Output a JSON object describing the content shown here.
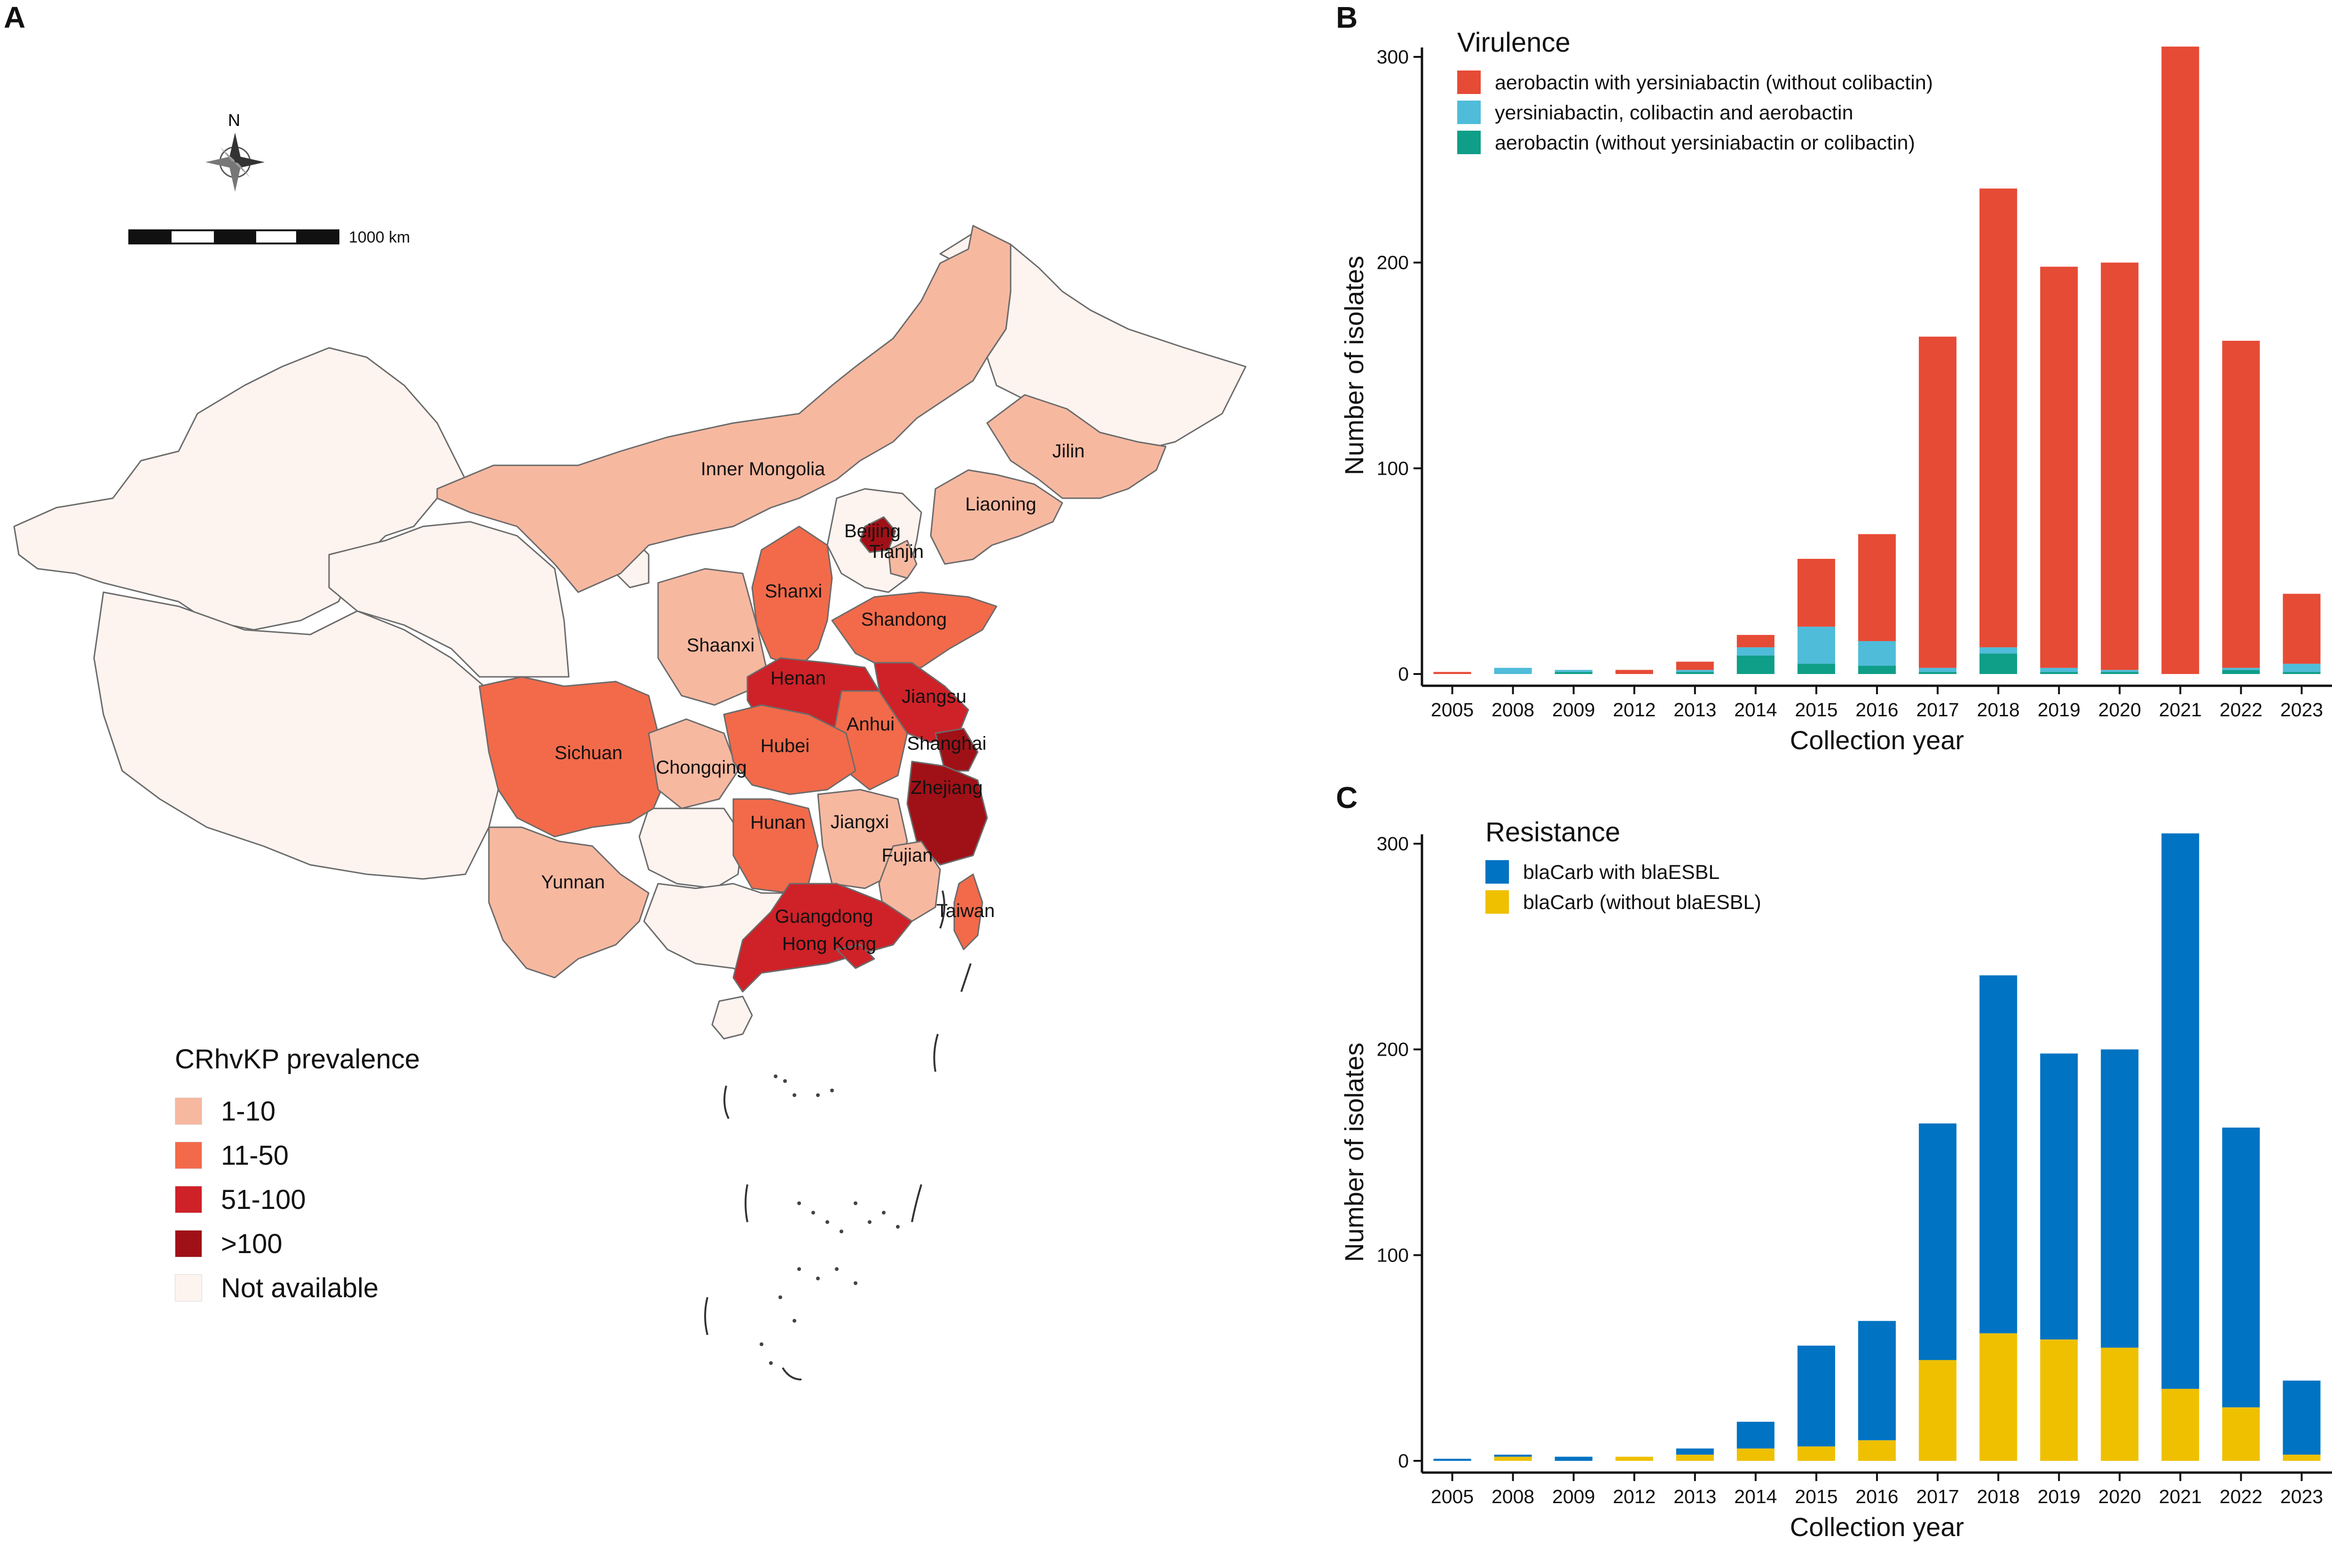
{
  "panels": {
    "a": "A",
    "b": "B",
    "c": "C"
  },
  "map": {
    "north_label": "N",
    "scale_label": "1000 km",
    "legend_title": "CRhvKP prevalence",
    "legend": [
      {
        "label": "1-10",
        "color": "#f7b8a0"
      },
      {
        "label": "11-50",
        "color": "#f26a4a"
      },
      {
        "label": "51-100",
        "color": "#cf2128"
      },
      {
        "label": ">100",
        "color": "#a01117"
      },
      {
        "label": "Not available",
        "color": "#fdf3ef"
      }
    ],
    "provinces": [
      {
        "name": "Inner Mongolia",
        "category": "1-10"
      },
      {
        "name": "Jilin",
        "category": "1-10"
      },
      {
        "name": "Liaoning",
        "category": "1-10"
      },
      {
        "name": "Beijing",
        "category": ">100"
      },
      {
        "name": "Tianjin",
        "category": "1-10"
      },
      {
        "name": "Shanxi",
        "category": "11-50"
      },
      {
        "name": "Shandong",
        "category": "11-50"
      },
      {
        "name": "Shaanxi",
        "category": "1-10"
      },
      {
        "name": "Henan",
        "category": "51-100"
      },
      {
        "name": "Jiangsu",
        "category": "51-100"
      },
      {
        "name": "Anhui",
        "category": "11-50"
      },
      {
        "name": "Shanghai",
        "category": ">100"
      },
      {
        "name": "Sichuan",
        "category": "11-50"
      },
      {
        "name": "Chongqing",
        "category": "1-10"
      },
      {
        "name": "Hubei",
        "category": "11-50"
      },
      {
        "name": "Zhejiang",
        "category": ">100"
      },
      {
        "name": "Hunan",
        "category": "11-50"
      },
      {
        "name": "Jiangxi",
        "category": "1-10"
      },
      {
        "name": "Fujian",
        "category": "1-10"
      },
      {
        "name": "Yunnan",
        "category": "1-10"
      },
      {
        "name": "Taiwan",
        "category": "11-50"
      },
      {
        "name": "Guangdong",
        "category": "51-100"
      },
      {
        "name": "Hong Kong",
        "category": "51-100"
      }
    ]
  },
  "chart_data": [
    {
      "panel": "B",
      "type": "bar",
      "stacked": true,
      "xlabel": "Collection year",
      "ylabel": "Number of isolates",
      "ylim": [
        0,
        300
      ],
      "yticks": [
        0,
        100,
        200,
        300
      ],
      "legend_title": "Virulence",
      "categories": [
        "2005",
        "2008",
        "2009",
        "2012",
        "2013",
        "2014",
        "2015",
        "2016",
        "2017",
        "2018",
        "2019",
        "2020",
        "2021",
        "2022",
        "2023"
      ],
      "series": [
        {
          "name": "aerobactin (without yersiniabactin or colibactin)",
          "color": "#0f9e87",
          "values": [
            0,
            0,
            1,
            0,
            1,
            9,
            5,
            4,
            1,
            10,
            1,
            1,
            0,
            2,
            1
          ]
        },
        {
          "name": "yersiniabactin, colibactin and aerobactin",
          "color": "#4fbcd9",
          "values": [
            0,
            3,
            1,
            0,
            1,
            4,
            18,
            12,
            2,
            3,
            2,
            1,
            0,
            1,
            4
          ]
        },
        {
          "name": "aerobactin with yersiniabactin (without colibactin)",
          "color": "#e64b35",
          "values": [
            1,
            0,
            0,
            2,
            4,
            6,
            33,
            52,
            161,
            223,
            195,
            198,
            305,
            159,
            34
          ]
        }
      ],
      "legend_order": [
        "aerobactin with yersiniabactin (without colibactin)",
        "yersiniabactin, colibactin and aerobactin",
        "aerobactin (without yersiniabactin or colibactin)"
      ]
    },
    {
      "panel": "C",
      "type": "bar",
      "stacked": true,
      "xlabel": "Collection year",
      "ylabel": "Number of isolates",
      "ylim": [
        0,
        300
      ],
      "yticks": [
        0,
        100,
        200,
        300
      ],
      "legend_title": "Resistance",
      "categories": [
        "2005",
        "2008",
        "2009",
        "2012",
        "2013",
        "2014",
        "2015",
        "2016",
        "2017",
        "2018",
        "2019",
        "2020",
        "2021",
        "2022",
        "2023"
      ],
      "series": [
        {
          "name": "blaCarb (without blaESBL)",
          "color": "#efc000",
          "values": [
            0,
            2,
            0,
            2,
            3,
            6,
            7,
            10,
            49,
            62,
            59,
            55,
            35,
            26,
            3
          ]
        },
        {
          "name": "blaCarb with blaESBL",
          "color": "#0073c2",
          "values": [
            1,
            1,
            2,
            0,
            3,
            13,
            49,
            58,
            115,
            174,
            139,
            145,
            270,
            136,
            36
          ]
        }
      ],
      "legend_order": [
        "blaCarb with blaESBL",
        "blaCarb (without blaESBL)"
      ]
    }
  ]
}
